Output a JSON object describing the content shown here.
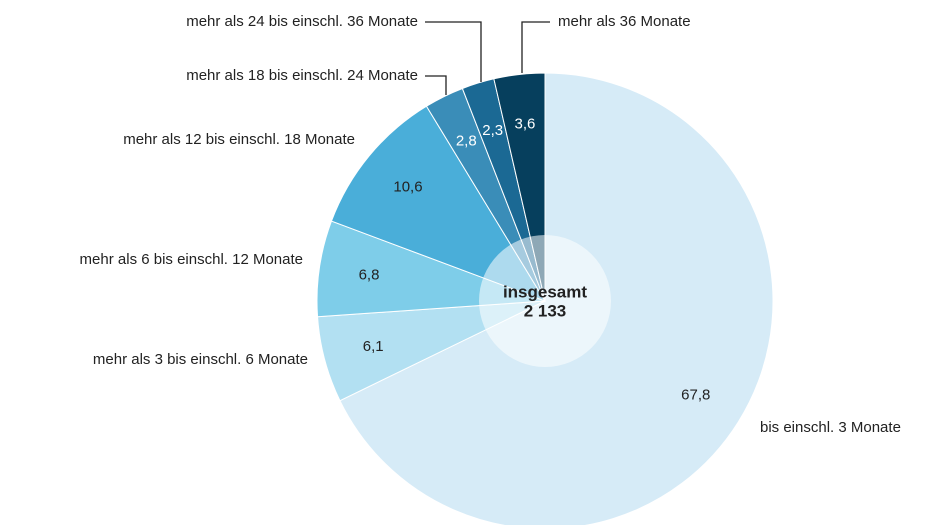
{
  "chart_data": {
    "type": "pie",
    "categories": [
      "bis einschl. 3 Monate",
      "mehr als 3 bis einschl. 6 Monate",
      "mehr als 6 bis einschl. 12 Monate",
      "mehr als 12 bis einschl. 18 Monate",
      "mehr als 18 bis einschl. 24 Monate",
      "mehr als 24 bis einschl. 36 Monate",
      "mehr als 36 Monate"
    ],
    "values": [
      67.8,
      6.1,
      6.8,
      10.6,
      2.8,
      2.3,
      3.6
    ],
    "value_labels": [
      "67,8",
      "6,1",
      "6,8",
      "10,6",
      "2,8",
      "2,3",
      "3,6"
    ],
    "colors": [
      "#d6ebf7",
      "#b2e0f2",
      "#7ecde9",
      "#4aaed9",
      "#3a8db8",
      "#1b6994",
      "#063f5d"
    ],
    "center_title": "insgesamt",
    "total": {
      "value": 2133,
      "label": "2 133"
    }
  }
}
